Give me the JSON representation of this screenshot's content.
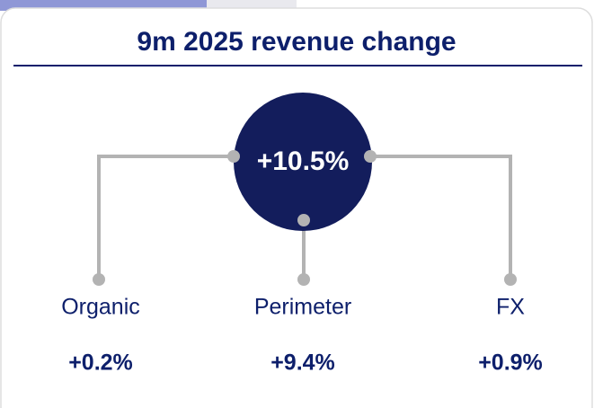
{
  "title": "9m 2025 revenue change",
  "center": {
    "label": "+10.5%"
  },
  "nodes": [
    {
      "label": "Organic",
      "value": "+0.2%"
    },
    {
      "label": "Perimeter",
      "value": "+9.4%"
    },
    {
      "label": "FX",
      "value": "+0.9%"
    }
  ]
}
